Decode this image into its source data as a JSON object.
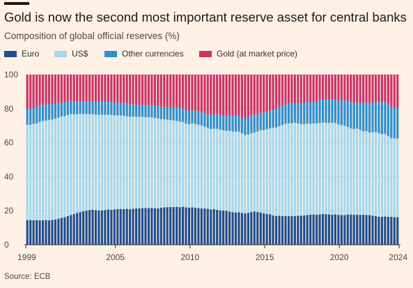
{
  "title": "Gold is now the second most important reserve asset for central banks",
  "subtitle": "Composition of global official reserves (%)",
  "source": "Source: ECB",
  "colors": {
    "background": "#fff1e5",
    "euro": "#1f4e8c",
    "usd": "#a6d8ee",
    "other": "#2f8fd0",
    "gold": "#cc3366",
    "grid": "#d7cfc6",
    "axis": "#333333"
  },
  "chart_data": {
    "type": "bar",
    "stacked": true,
    "title": "Gold is now the second most important reserve asset for central banks",
    "subtitle": "Composition of global official reserves (%)",
    "ylim": [
      0,
      100
    ],
    "y_ticks": [
      "0",
      "20",
      "40",
      "60",
      "80",
      "100"
    ],
    "x_ticks": [
      "1999",
      "2005",
      "2010",
      "2015",
      "2020",
      "2024"
    ],
    "x_start": 1999,
    "x_end": 2024,
    "periods_per_year": 4,
    "grid": true,
    "legend_position": "top",
    "series": [
      {
        "name": "Euro",
        "color": "#1f4e8c",
        "values": [
          14.5,
          14.5,
          14.4,
          14.5,
          14.4,
          14.4,
          14.6,
          14.4,
          14.6,
          14.9,
          15.3,
          15.8,
          16.2,
          16.8,
          17.5,
          18.1,
          18.7,
          19.2,
          19.7,
          20.1,
          20.4,
          20.6,
          20.3,
          20.1,
          20.2,
          20.3,
          20.7,
          20.6,
          20.7,
          21.0,
          21.0,
          20.9,
          21.1,
          21.0,
          21.2,
          21.3,
          21.4,
          21.6,
          21.6,
          21.5,
          21.7,
          21.5,
          21.4,
          21.8,
          22.0,
          22.1,
          22.2,
          22.2,
          22.3,
          22.1,
          22.4,
          22.0,
          21.8,
          22.0,
          21.7,
          21.5,
          21.4,
          21.4,
          21.1,
          20.8,
          21.0,
          20.5,
          20.2,
          20.1,
          20.0,
          19.5,
          19.2,
          19.0,
          19.1,
          18.8,
          18.5,
          18.8,
          19.3,
          19.6,
          19.3,
          19.0,
          18.5,
          18.2,
          18.0,
          17.3,
          16.9,
          17.0,
          16.9,
          16.9,
          16.8,
          16.8,
          16.9,
          17.0,
          17.0,
          17.3,
          17.5,
          17.7,
          17.8,
          17.7,
          17.9,
          18.1,
          18.0,
          17.9,
          17.7,
          17.8,
          17.6,
          17.5,
          17.4,
          17.8,
          17.8,
          17.6,
          17.7,
          17.6,
          17.7,
          17.5,
          17.4,
          17.1,
          16.8,
          16.5,
          16.4,
          16.6,
          16.4,
          16.4,
          16.3,
          16.2
        ]
      },
      {
        "name": "US$",
        "color": "#a6d8ee",
        "values": [
          56.0,
          56.0,
          56.6,
          56.8,
          57.8,
          58.4,
          58.4,
          59.0,
          59.0,
          59.2,
          59.4,
          59.6,
          59.3,
          59.5,
          59.3,
          58.4,
          58.0,
          57.7,
          57.1,
          56.6,
          56.4,
          56.2,
          56.2,
          56.3,
          56.3,
          56.1,
          55.7,
          55.7,
          55.3,
          55.0,
          55.0,
          55.0,
          54.5,
          54.2,
          54.1,
          53.9,
          53.7,
          53.5,
          53.4,
          53.5,
          53.1,
          53.0,
          52.8,
          52.0,
          51.7,
          51.4,
          51.1,
          50.8,
          50.5,
          50.3,
          49.8,
          49.2,
          49.0,
          49.3,
          49.3,
          49.0,
          48.8,
          48.0,
          47.6,
          47.2,
          47.3,
          47.7,
          47.5,
          47.2,
          46.9,
          47.5,
          47.3,
          47.6,
          47.3,
          46.7,
          46.0,
          46.0,
          46.2,
          46.3,
          47.2,
          48.4,
          48.8,
          49.6,
          50.4,
          51.5,
          52.1,
          52.7,
          53.5,
          54.2,
          54.5,
          54.6,
          54.9,
          54.3,
          53.9,
          53.6,
          53.7,
          53.3,
          53.4,
          53.5,
          53.7,
          53.8,
          53.6,
          53.7,
          54.0,
          53.7,
          53.1,
          52.8,
          52.5,
          51.4,
          50.6,
          50.4,
          50.6,
          49.9,
          49.0,
          49.2,
          48.5,
          49.0,
          49.5,
          49.0,
          48.6,
          48.5,
          47.5,
          46.2,
          46.2,
          46.2
        ]
      },
      {
        "name": "Other currencies",
        "color": "#2f8fd0",
        "values": [
          9.5,
          9.5,
          9.3,
          9.6,
          9.7,
          9.6,
          9.4,
          9.2,
          9.2,
          8.9,
          8.6,
          8.1,
          8.0,
          7.8,
          7.9,
          7.7,
          7.6,
          7.5,
          7.5,
          7.5,
          7.6,
          7.5,
          7.4,
          7.4,
          7.6,
          7.6,
          7.6,
          7.7,
          7.7,
          7.6,
          7.3,
          7.5,
          7.3,
          7.3,
          7.4,
          7.0,
          7.1,
          6.7,
          6.9,
          7.0,
          7.0,
          7.3,
          7.4,
          7.3,
          7.3,
          7.3,
          7.4,
          7.7,
          7.9,
          7.7,
          7.9,
          7.9,
          7.9,
          7.8,
          7.6,
          7.8,
          7.8,
          7.9,
          8.0,
          8.0,
          8.4,
          8.5,
          8.2,
          8.5,
          8.6,
          9.0,
          9.5,
          9.4,
          9.6,
          9.2,
          9.5,
          10.0,
          10.5,
          10.5,
          10.0,
          10.3,
          10.5,
          10.4,
          10.4,
          10.7,
          11.0,
          11.2,
          11.2,
          11.4,
          11.6,
          11.6,
          11.6,
          12.1,
          12.5,
          12.5,
          12.7,
          12.6,
          12.8,
          13.1,
          13.3,
          13.4,
          13.6,
          13.6,
          13.7,
          13.9,
          14.2,
          14.5,
          15.0,
          15.3,
          15.6,
          15.4,
          15.4,
          15.9,
          16.3,
          16.8,
          17.4,
          17.3,
          17.7,
          18.4,
          18.7,
          18.8,
          18.7,
          18.3,
          18.2,
          18.0
        ]
      },
      {
        "name": "Gold (at market price)",
        "color": "#cc3366",
        "values": [
          20.0,
          20.0,
          19.7,
          19.1,
          18.1,
          17.6,
          17.6,
          17.4,
          17.2,
          17.0,
          16.7,
          16.5,
          16.5,
          15.9,
          15.3,
          15.8,
          15.7,
          15.6,
          15.7,
          15.8,
          15.6,
          15.7,
          16.1,
          16.2,
          15.9,
          16.0,
          16.0,
          16.0,
          16.3,
          16.4,
          16.7,
          16.6,
          17.1,
          17.5,
          17.3,
          17.8,
          17.8,
          18.2,
          18.1,
          18.0,
          18.2,
          18.2,
          18.4,
          18.9,
          19.0,
          19.2,
          19.3,
          19.3,
          19.3,
          19.9,
          19.9,
          20.9,
          21.3,
          20.9,
          21.4,
          21.7,
          22.0,
          22.7,
          23.3,
          24.0,
          23.3,
          23.3,
          24.1,
          24.2,
          24.5,
          24.0,
          24.0,
          24.0,
          24.0,
          25.3,
          26.0,
          25.2,
          24.0,
          23.6,
          23.5,
          22.3,
          22.2,
          21.8,
          21.2,
          20.5,
          20.0,
          19.1,
          18.4,
          17.5,
          17.1,
          17.0,
          16.6,
          16.6,
          16.6,
          16.6,
          16.1,
          16.4,
          16.0,
          15.7,
          15.1,
          14.7,
          14.8,
          14.8,
          14.6,
          14.6,
          15.1,
          15.2,
          15.1,
          15.5,
          16.0,
          16.6,
          16.3,
          16.6,
          17.0,
          16.5,
          16.7,
          16.6,
          16.0,
          16.1,
          16.3,
          16.1,
          17.4,
          19.1,
          19.3,
          19.6
        ]
      }
    ]
  }
}
